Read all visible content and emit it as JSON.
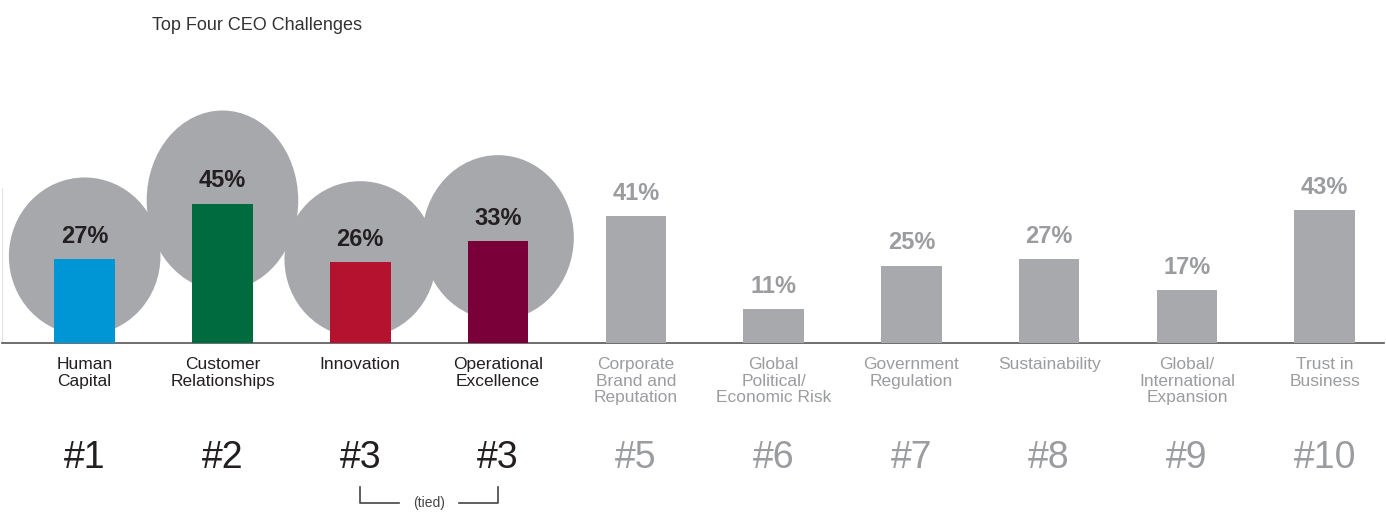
{
  "chart_data": {
    "type": "bar",
    "title": "Top Four CEO Challenges",
    "categories": [
      "Human\nCapital",
      "Customer\nRelationships",
      "Innovation",
      "Operational\nExcellence",
      "Corporate\nBrand and\nReputation",
      "Global\nPolitical/\nEconomic Risk",
      "Government\nRegulation",
      "Sustainability",
      "Global/\nInternational\nExpansion",
      "Trust in\nBusiness"
    ],
    "values": [
      27,
      45,
      26,
      33,
      41,
      11,
      25,
      27,
      17,
      43
    ],
    "value_labels": [
      "27%",
      "45%",
      "26%",
      "33%",
      "41%",
      "11%",
      "25%",
      "27%",
      "17%",
      "43%"
    ],
    "colors": [
      "#0096d6",
      "#006b3f",
      "#b5122f",
      "#7a0039",
      "#a7a9ac",
      "#a7a9ac",
      "#a7a9ac",
      "#a7a9ac",
      "#a7a9ac",
      "#a7a9ac"
    ],
    "rank_labels": [
      "#1",
      "#2",
      "#3",
      "#3",
      "#5",
      "#6",
      "#7",
      "#8",
      "#9",
      "#10"
    ],
    "tie_note": "(tied)",
    "ylim": [
      0,
      50
    ],
    "data_labels": true,
    "tick_labels": "x",
    "grid": false
  }
}
